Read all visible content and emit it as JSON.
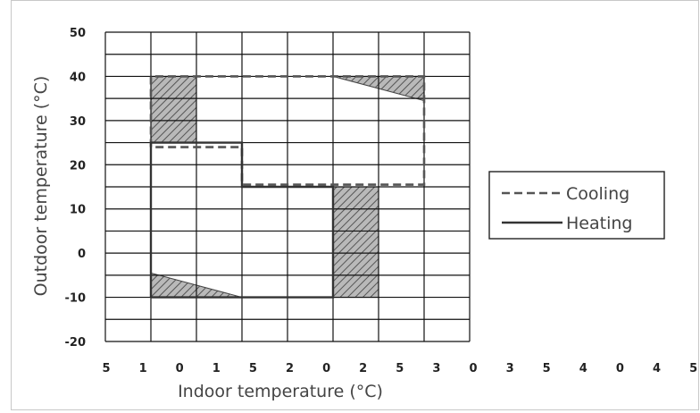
{
  "chart_data": {
    "type": "line",
    "title": "",
    "xlabel": "Indoor temperature (°C)",
    "ylabel": "Outdoor temperature (°C)",
    "x_tick_labels": [
      "5",
      "1",
      "0",
      "1",
      "5",
      "2",
      "0",
      "2",
      "5",
      "3",
      "0",
      "3",
      "5",
      "4",
      "0",
      "4",
      "5"
    ],
    "y_ticks": [
      50,
      40,
      30,
      20,
      10,
      0,
      -10,
      -20
    ],
    "x_range_columns": [
      0,
      8
    ],
    "ylim": [
      -20,
      50
    ],
    "grid": true,
    "legend_position": "right",
    "series": [
      {
        "name": "Cooling",
        "style": "dashed",
        "color": "#555555",
        "points": [
          [
            1,
            24
          ],
          [
            1,
            40
          ],
          [
            7,
            40
          ],
          [
            7,
            15.5
          ],
          [
            3,
            15.5
          ],
          [
            3,
            24
          ],
          [
            1,
            24
          ]
        ]
      },
      {
        "name": "Heating",
        "style": "solid",
        "color": "#333333",
        "points": [
          [
            1,
            -10
          ],
          [
            1,
            25
          ],
          [
            3,
            25
          ],
          [
            3,
            15
          ],
          [
            5,
            15
          ],
          [
            5,
            -10
          ],
          [
            1,
            -10
          ]
        ]
      }
    ],
    "shaded_regions": [
      [
        [
          1,
          25
        ],
        [
          1,
          40
        ],
        [
          2,
          40
        ],
        [
          2,
          25
        ]
      ],
      [
        [
          5,
          40
        ],
        [
          7,
          40
        ],
        [
          7,
          34.5
        ]
      ],
      [
        [
          5,
          -10
        ],
        [
          5,
          15
        ],
        [
          6,
          15
        ],
        [
          6,
          -10
        ]
      ],
      [
        [
          1,
          -10
        ],
        [
          1,
          -4.5
        ],
        [
          3,
          -10
        ]
      ]
    ]
  }
}
